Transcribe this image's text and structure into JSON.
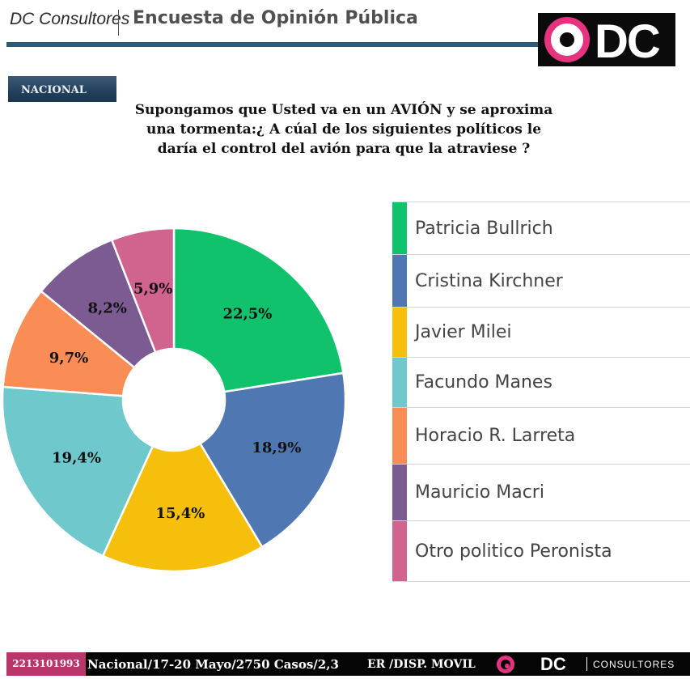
{
  "header": {
    "brand": "DC Consultores",
    "title": "Encuesta de Opinión Pública",
    "logo_text": "DC"
  },
  "badge": {
    "label": "NACIONAL"
  },
  "question": {
    "lines": [
      "Supongamos que Usted va en un AVIÓN y se aproxima",
      "una tormenta:¿ A cúal de los siguientes políticos le",
      "daría el control del avión para que la atraviese ?"
    ]
  },
  "chart_data": {
    "type": "pie",
    "donut": true,
    "title": "Supongamos que Usted va en un AVIÓN y se aproxima una tormenta:¿ A cúal de los siguientes políticos le daría el control del avión para que la atraviese ?",
    "unit": "%",
    "slices": [
      {
        "name": "Patricia Bullrich",
        "value": 22.5,
        "label": "22,5%",
        "color": "#11c26d"
      },
      {
        "name": "Cristina Kirchner",
        "value": 18.9,
        "label": "18,9%",
        "color": "#4f78b3"
      },
      {
        "name": "Javier Milei",
        "value": 15.4,
        "label": "15,4%",
        "color": "#f6bf0b"
      },
      {
        "name": "Facundo Manes",
        "value": 19.4,
        "label": "19,4%",
        "color": "#6ec8cc"
      },
      {
        "name": "Horacio R. Larreta",
        "value": 9.7,
        "label": "9,7%",
        "color": "#f98d55"
      },
      {
        "name": "Mauricio Macri",
        "value": 8.2,
        "label": "8,2%",
        "color": "#7b5b92"
      },
      {
        "name": "Otro politico Peronista",
        "value": 5.9,
        "label": "5,9%",
        "color": "#d1638f"
      }
    ],
    "legend": "right"
  },
  "footer": {
    "phone": "2213101993",
    "info": "Nacional/17-20 Mayo/2750 Casos/2,3",
    "mode": "ER /DISP. MOVIL",
    "logo_text": "DC",
    "logo_sub": "CONSULTORES"
  }
}
